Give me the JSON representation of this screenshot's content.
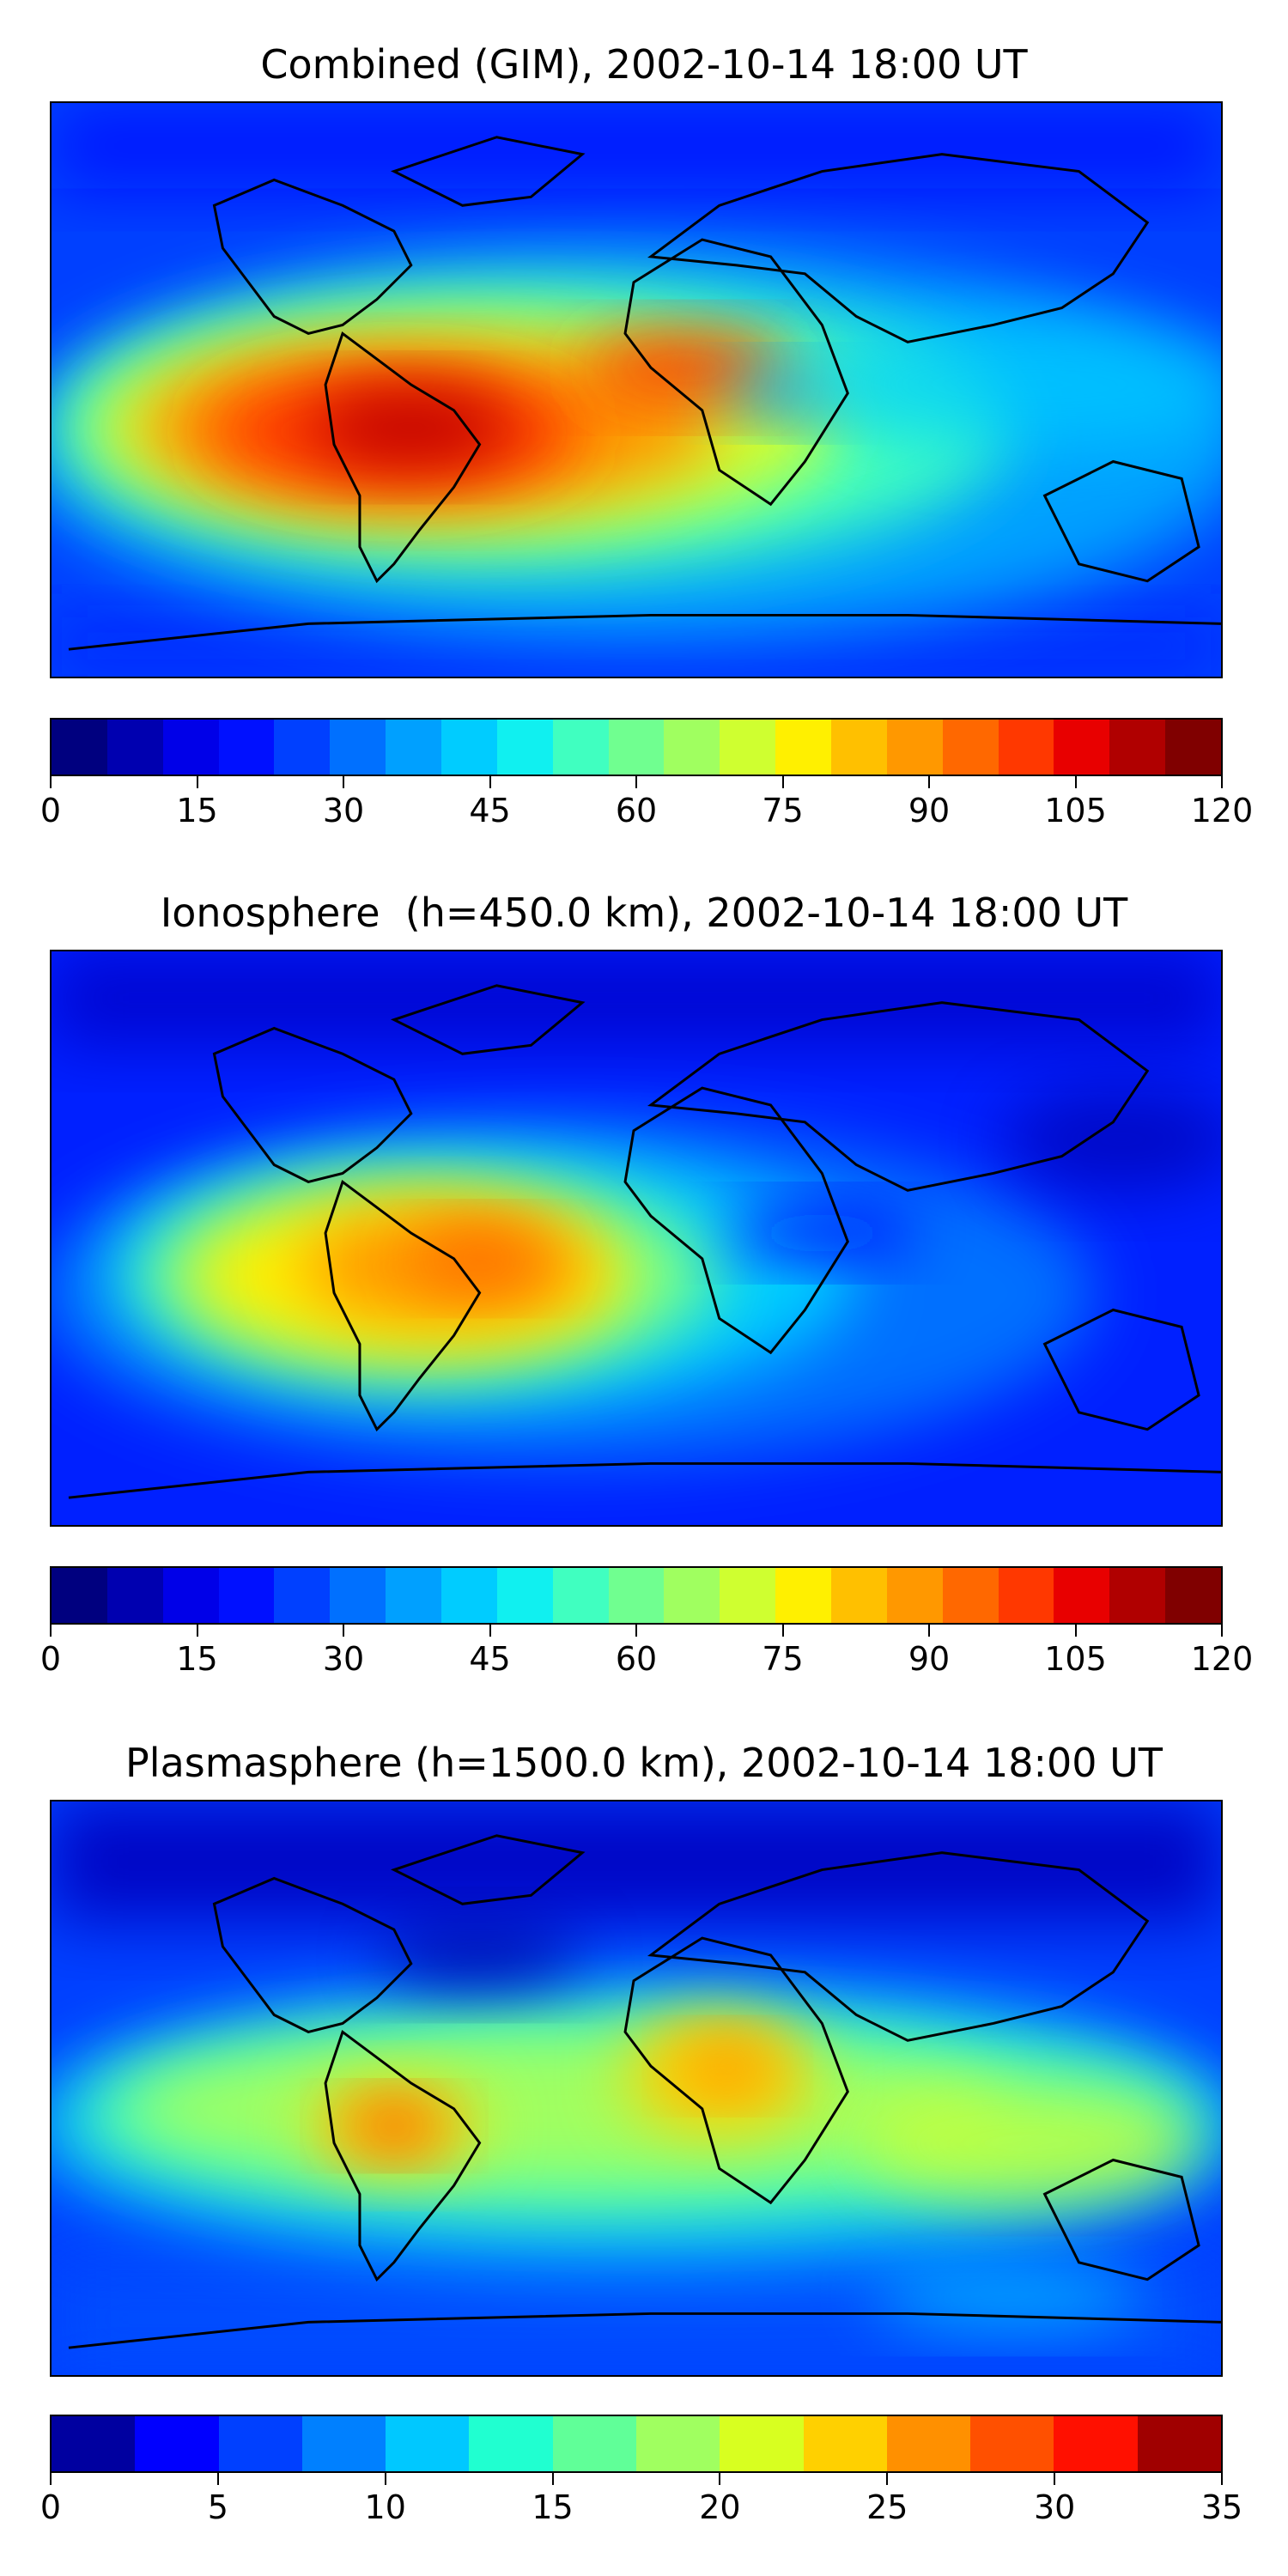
{
  "panels": [
    {
      "title": "Combined (GIM), 2002-10-14 18:00 UT",
      "colorbar": {
        "min": 0,
        "max": 120,
        "ticks": [
          "0",
          "15",
          "30",
          "45",
          "60",
          "75",
          "90",
          "105",
          "120"
        ],
        "colors": [
          "#00007f",
          "#0000b0",
          "#0000e8",
          "#0010ff",
          "#0040ff",
          "#0070ff",
          "#00a0ff",
          "#00ccff",
          "#10f0f0",
          "#40ffc0",
          "#70ff90",
          "#a0ff60",
          "#cfff30",
          "#fff000",
          "#ffc000",
          "#ff9800",
          "#ff6800",
          "#ff3800",
          "#e80000",
          "#b00000",
          "#800000"
        ]
      },
      "heat_spots": [
        {
          "lon": -55,
          "lat": -5,
          "value": 110
        },
        {
          "lon": -20,
          "lat": 5,
          "value": 90
        },
        {
          "lon": 0,
          "lat": 12,
          "value": 95
        },
        {
          "lon": 20,
          "lat": -5,
          "value": 85
        }
      ]
    },
    {
      "title": "Ionosphere  (h=450.0 km), 2002-10-14 18:00 UT",
      "colorbar": {
        "min": 0,
        "max": 120,
        "ticks": [
          "0",
          "15",
          "30",
          "45",
          "60",
          "75",
          "90",
          "105",
          "120"
        ],
        "colors": [
          "#00007f",
          "#0000b0",
          "#0000e8",
          "#0010ff",
          "#0040ff",
          "#0070ff",
          "#00a0ff",
          "#00ccff",
          "#10f0f0",
          "#40ffc0",
          "#70ff90",
          "#a0ff60",
          "#cfff30",
          "#fff000",
          "#ffc000",
          "#ff9800",
          "#ff6800",
          "#ff3800",
          "#e80000",
          "#b00000",
          "#800000"
        ]
      },
      "heat_spots": [
        {
          "lon": -60,
          "lat": 5,
          "value": 90
        },
        {
          "lon": -45,
          "lat": 15,
          "value": 100
        },
        {
          "lon": -20,
          "lat": 0,
          "value": 70
        }
      ]
    },
    {
      "title": "Plasmasphere (h=1500.0 km), 2002-10-14 18:00 UT",
      "colorbar": {
        "min": 0,
        "max": 35,
        "ticks": [
          "0",
          "5",
          "10",
          "15",
          "20",
          "25",
          "30",
          "35"
        ],
        "colors": [
          "#0000a0",
          "#0000ff",
          "#0040ff",
          "#0080ff",
          "#00c8ff",
          "#20ffd0",
          "#60ff98",
          "#a0ff60",
          "#d8ff20",
          "#ffd000",
          "#ff9000",
          "#ff5000",
          "#ff1000",
          "#a00000"
        ]
      },
      "heat_spots": [
        {
          "lon": -70,
          "lat": -5,
          "value": 26
        },
        {
          "lon": 20,
          "lat": 10,
          "value": 27
        },
        {
          "lon": 100,
          "lat": -15,
          "value": 18
        }
      ]
    }
  ]
}
